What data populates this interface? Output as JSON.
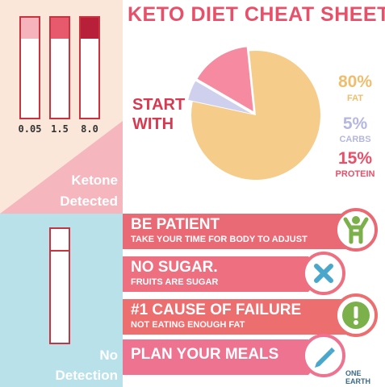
{
  "title": "KETO DIET CHEAT SHEET",
  "ketone_panel": {
    "strips": [
      {
        "label": "0.05",
        "color": "#f6b3bb"
      },
      {
        "label": "1.5",
        "color": "#e75a6d"
      },
      {
        "label": "8.0",
        "color": "#b8203a"
      }
    ],
    "detected_line1": "Ketone",
    "detected_line2": "Detected",
    "no_line1": "No",
    "no_line2": "Detection"
  },
  "start_with": {
    "line1": "START",
    "line2": "WITH"
  },
  "chart_data": {
    "type": "pie",
    "slices": [
      {
        "label": "Fat",
        "value": 80,
        "color": "#f5cc8a"
      },
      {
        "label": "Carbs",
        "value": 5,
        "color": "#cfd0ee"
      },
      {
        "label": "Protein",
        "value": 15,
        "color": "#f58aa0"
      }
    ]
  },
  "legend": {
    "fat_pct": "80%",
    "fat_label": "FAT",
    "carbs_pct": "5%",
    "carbs_label": "CARBS",
    "protein_pct": "15%",
    "protein_label": "PROTEIN"
  },
  "tips": [
    {
      "head": "BE PATIENT",
      "sub": "TAKE YOUR TIME FOR BODY TO ADJUST",
      "icon": "person-cheer-icon",
      "band": "#e96a75",
      "accent": "#7bb04a"
    },
    {
      "head": "NO SUGAR.",
      "sub": "FRUITS ARE SUGAR",
      "icon": "cross-icon",
      "band": "#ee6f7f",
      "accent": "#4aa7cc"
    },
    {
      "head": "#1 CAUSE OF FAILURE",
      "sub": "NOT EATING ENOUGH FAT",
      "icon": "exclamation-icon",
      "band": "#ec6e6f",
      "accent": "#7bb04a"
    },
    {
      "head": "PLAN YOUR MEALS",
      "sub": "",
      "icon": "pencil-icon",
      "band": "#ee7391",
      "accent": "#4aa7cc"
    }
  ],
  "logo": "ONE EARTH"
}
